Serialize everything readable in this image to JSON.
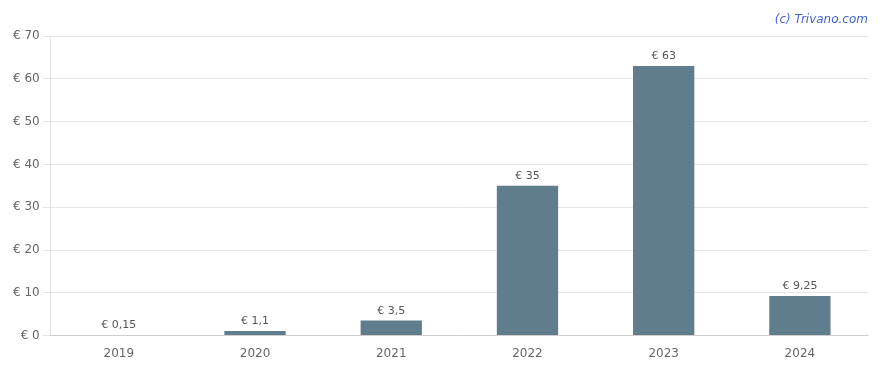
{
  "chart_data": {
    "type": "bar",
    "categories": [
      "2019",
      "2020",
      "2021",
      "2022",
      "2023",
      "2024"
    ],
    "values": [
      0.15,
      1.1,
      3.5,
      35,
      63,
      9.25
    ],
    "value_labels": [
      "€ 0,15",
      "€ 1,1",
      "€ 3,5",
      "€ 35",
      "€ 63",
      "€ 9,25"
    ],
    "data_labels": true,
    "color": "#5f7d8c",
    "ylim": [
      0,
      70
    ],
    "yticks": [
      {
        "value": 0,
        "label": "€ 0"
      },
      {
        "value": 10,
        "label": "€ 10"
      },
      {
        "value": 20,
        "label": "€ 20"
      },
      {
        "value": 30,
        "label": "€ 30"
      },
      {
        "value": 40,
        "label": "€ 40"
      },
      {
        "value": 50,
        "label": "€ 50"
      },
      {
        "value": 60,
        "label": "€ 60"
      },
      {
        "value": 70,
        "label": "€ 70"
      }
    ],
    "grid": true,
    "annotations": [
      {
        "text": "(c) Trivano.com",
        "color": "#4466cc"
      }
    ]
  }
}
